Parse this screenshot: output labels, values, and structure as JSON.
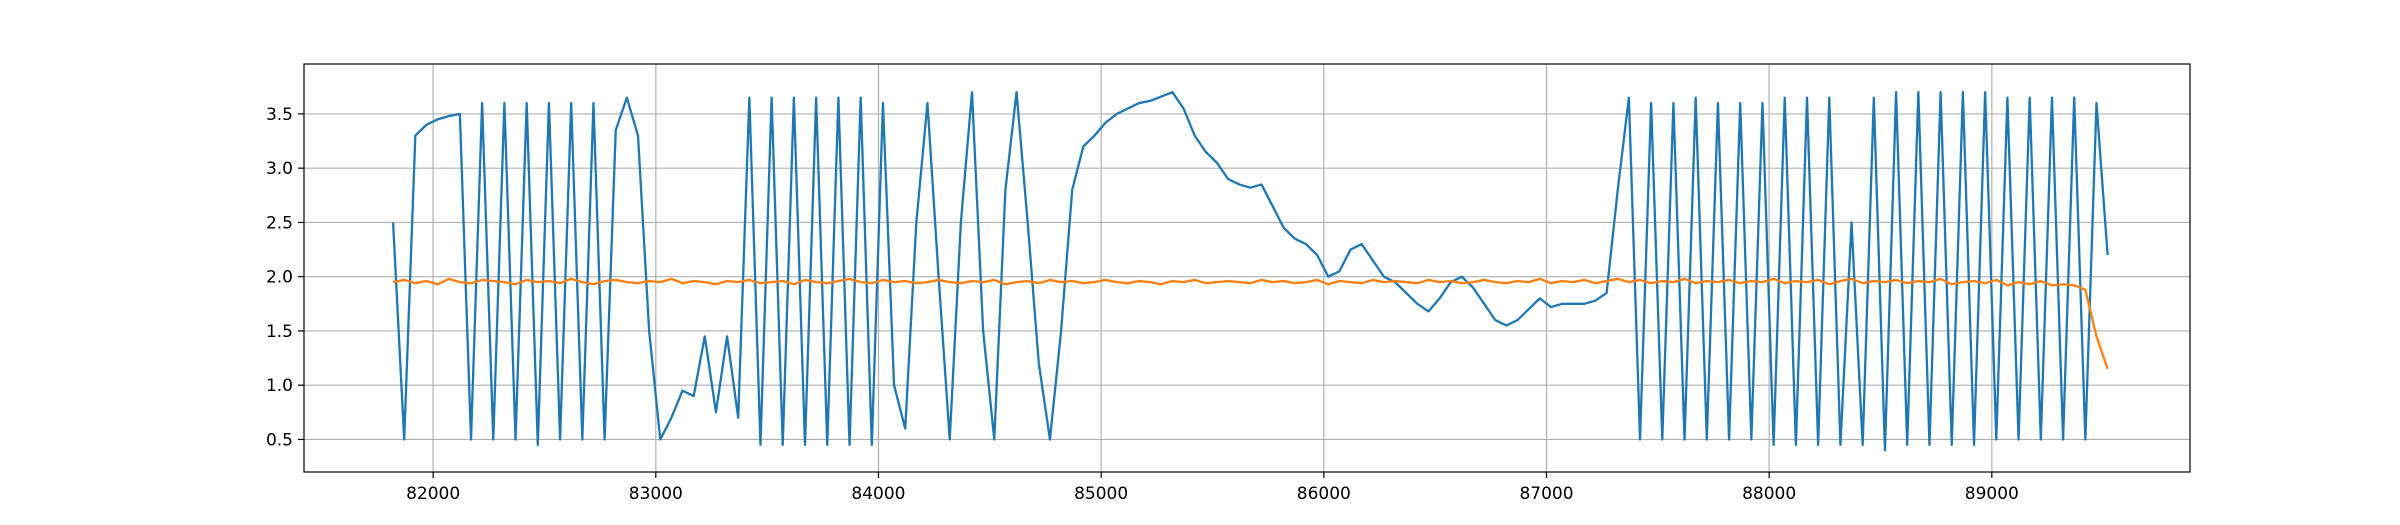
{
  "chart_data": {
    "type": "line",
    "x": [
      81820,
      81870,
      81920,
      81970,
      82020,
      82070,
      82120,
      82170,
      82220,
      82270,
      82320,
      82370,
      82420,
      82470,
      82520,
      82570,
      82620,
      82670,
      82720,
      82770,
      82820,
      82870,
      82920,
      82970,
      83020,
      83070,
      83120,
      83170,
      83220,
      83270,
      83320,
      83370,
      83420,
      83470,
      83520,
      83570,
      83620,
      83670,
      83720,
      83770,
      83820,
      83870,
      83920,
      83970,
      84020,
      84070,
      84120,
      84170,
      84220,
      84270,
      84320,
      84370,
      84420,
      84470,
      84520,
      84570,
      84620,
      84670,
      84720,
      84770,
      84820,
      84870,
      84920,
      84970,
      85020,
      85070,
      85120,
      85170,
      85220,
      85270,
      85320,
      85370,
      85420,
      85470,
      85520,
      85570,
      85620,
      85670,
      85720,
      85770,
      85820,
      85870,
      85920,
      85970,
      86020,
      86070,
      86120,
      86170,
      86220,
      86270,
      86320,
      86370,
      86420,
      86470,
      86520,
      86570,
      86620,
      86670,
      86720,
      86770,
      86820,
      86870,
      86920,
      86970,
      87020,
      87070,
      87120,
      87170,
      87220,
      87270,
      87320,
      87370,
      87420,
      87470,
      87520,
      87570,
      87620,
      87670,
      87720,
      87770,
      87820,
      87870,
      87920,
      87970,
      88020,
      88070,
      88120,
      88170,
      88220,
      88270,
      88320,
      88370,
      88420,
      88470,
      88520,
      88570,
      88620,
      88670,
      88720,
      88770,
      88820,
      88870,
      88920,
      88970,
      89020,
      89070,
      89120,
      89170,
      89220,
      89270,
      89320,
      89370,
      89420,
      89470,
      89520
    ],
    "series": [
      {
        "color": "#1f77b4",
        "values": [
          2.5,
          0.5,
          3.3,
          3.4,
          3.45,
          3.48,
          3.5,
          0.5,
          3.6,
          0.5,
          3.6,
          0.5,
          3.6,
          0.45,
          3.6,
          0.5,
          3.6,
          0.5,
          3.6,
          0.5,
          3.35,
          3.65,
          3.3,
          1.5,
          0.5,
          0.7,
          0.95,
          0.9,
          1.45,
          0.75,
          1.45,
          0.7,
          3.65,
          0.45,
          3.65,
          0.45,
          3.65,
          0.45,
          3.65,
          0.45,
          3.65,
          0.45,
          3.65,
          0.45,
          3.6,
          1.0,
          0.6,
          2.5,
          3.6,
          2.0,
          0.5,
          2.5,
          3.7,
          1.5,
          0.5,
          2.8,
          3.7,
          2.5,
          1.2,
          0.5,
          1.5,
          2.8,
          3.2,
          3.3,
          3.42,
          3.5,
          3.55,
          3.6,
          3.62,
          3.66,
          3.7,
          3.55,
          3.3,
          3.15,
          3.05,
          2.9,
          2.85,
          2.82,
          2.85,
          2.65,
          2.45,
          2.35,
          2.3,
          2.2,
          2.0,
          2.05,
          2.25,
          2.3,
          2.15,
          2.0,
          1.95,
          1.85,
          1.75,
          1.68,
          1.8,
          1.95,
          2.0,
          1.9,
          1.75,
          1.6,
          1.55,
          1.6,
          1.7,
          1.8,
          1.72,
          1.75,
          1.75,
          1.75,
          1.78,
          1.85,
          2.8,
          3.65,
          0.5,
          3.6,
          0.5,
          3.6,
          0.5,
          3.65,
          0.5,
          3.6,
          0.5,
          3.6,
          0.5,
          3.6,
          0.45,
          3.65,
          0.45,
          3.65,
          0.45,
          3.65,
          0.45,
          2.5,
          0.45,
          3.65,
          0.4,
          3.7,
          0.45,
          3.7,
          0.45,
          3.7,
          0.45,
          3.7,
          0.45,
          3.7,
          0.5,
          3.65,
          0.5,
          3.65,
          0.5,
          3.65,
          0.5,
          3.65,
          0.5,
          3.6,
          2.2
        ]
      },
      {
        "color": "#ff7f0e",
        "values": [
          1.95,
          1.97,
          1.94,
          1.96,
          1.93,
          1.98,
          1.95,
          1.94,
          1.97,
          1.96,
          1.95,
          1.93,
          1.97,
          1.95,
          1.96,
          1.94,
          1.98,
          1.95,
          1.93,
          1.96,
          1.97,
          1.95,
          1.94,
          1.96,
          1.95,
          1.98,
          1.94,
          1.96,
          1.95,
          1.93,
          1.96,
          1.95,
          1.97,
          1.94,
          1.95,
          1.96,
          1.93,
          1.97,
          1.95,
          1.94,
          1.96,
          1.98,
          1.95,
          1.94,
          1.97,
          1.95,
          1.96,
          1.94,
          1.95,
          1.97,
          1.95,
          1.94,
          1.96,
          1.95,
          1.97,
          1.93,
          1.95,
          1.96,
          1.94,
          1.97,
          1.95,
          1.96,
          1.94,
          1.95,
          1.97,
          1.95,
          1.94,
          1.96,
          1.95,
          1.93,
          1.96,
          1.95,
          1.97,
          1.94,
          1.95,
          1.96,
          1.95,
          1.94,
          1.97,
          1.95,
          1.96,
          1.94,
          1.95,
          1.97,
          1.93,
          1.96,
          1.95,
          1.94,
          1.97,
          1.95,
          1.96,
          1.95,
          1.94,
          1.97,
          1.95,
          1.96,
          1.94,
          1.95,
          1.97,
          1.95,
          1.94,
          1.96,
          1.95,
          1.98,
          1.94,
          1.96,
          1.95,
          1.97,
          1.94,
          1.96,
          1.98,
          1.95,
          1.97,
          1.94,
          1.96,
          1.95,
          1.98,
          1.94,
          1.96,
          1.95,
          1.97,
          1.94,
          1.96,
          1.95,
          1.98,
          1.94,
          1.96,
          1.95,
          1.97,
          1.93,
          1.96,
          1.98,
          1.94,
          1.96,
          1.95,
          1.97,
          1.94,
          1.96,
          1.95,
          1.98,
          1.93,
          1.95,
          1.96,
          1.94,
          1.97,
          1.92,
          1.95,
          1.93,
          1.96,
          1.92,
          1.93,
          1.92,
          1.88,
          1.45,
          1.15
        ]
      }
    ],
    "xlim": [
      81420,
      89890
    ],
    "ylim": [
      0.2,
      3.96
    ],
    "xticks": [
      82000,
      83000,
      84000,
      85000,
      86000,
      87000,
      88000,
      89000
    ],
    "yticks": [
      0.5,
      {
        "value": 1,
        "label": "1.0"
      },
      1.5,
      {
        "value": 2,
        "label": "2.0"
      },
      2.5,
      {
        "value": 3,
        "label": "3.0"
      },
      3.5
    ],
    "grid": true
  }
}
